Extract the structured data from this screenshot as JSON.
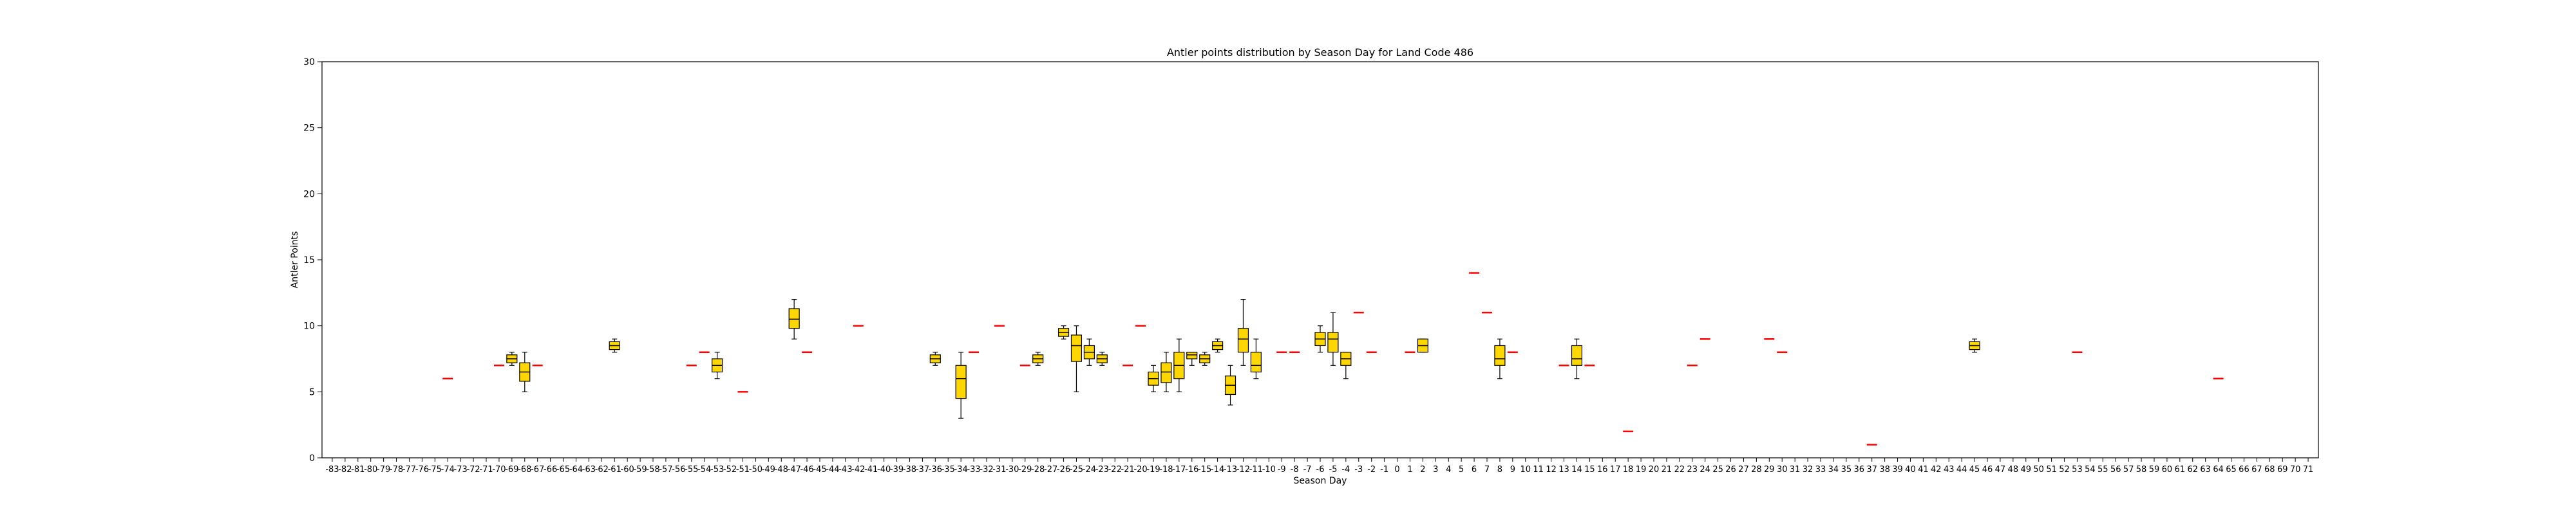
{
  "chart_data": {
    "type": "box",
    "title": "Antler points distribution by Season Day for Land Code 486",
    "xlabel": "Season Day",
    "ylabel": "Antler Points",
    "ylim": [
      0,
      30
    ],
    "yticks": [
      0,
      5,
      10,
      15,
      20,
      25,
      30
    ],
    "x_categories_range": [
      -83,
      71
    ],
    "grid": false,
    "legend": "none",
    "colors": {
      "box_fill": "#ffd700",
      "median": "#ff0000",
      "edge": "#000000",
      "whisker": "#000000"
    },
    "boxes": [
      {
        "x": -74,
        "q1": 6,
        "median": 6,
        "q3": 6,
        "low": 6,
        "high": 6
      },
      {
        "x": -70,
        "q1": 7,
        "median": 7,
        "q3": 7,
        "low": 7,
        "high": 7
      },
      {
        "x": -69,
        "q1": 7.2,
        "median": 7.5,
        "q3": 7.8,
        "low": 7,
        "high": 8
      },
      {
        "x": -68,
        "q1": 5.8,
        "median": 6.5,
        "q3": 7.2,
        "low": 5,
        "high": 8
      },
      {
        "x": -67,
        "q1": 7,
        "median": 7,
        "q3": 7,
        "low": 7,
        "high": 7
      },
      {
        "x": -61,
        "q1": 8.2,
        "median": 8.5,
        "q3": 8.8,
        "low": 8,
        "high": 9
      },
      {
        "x": -55,
        "q1": 7,
        "median": 7,
        "q3": 7,
        "low": 7,
        "high": 7
      },
      {
        "x": -54,
        "q1": 8,
        "median": 8,
        "q3": 8,
        "low": 8,
        "high": 8
      },
      {
        "x": -53,
        "q1": 6.5,
        "median": 7,
        "q3": 7.5,
        "low": 6,
        "high": 8
      },
      {
        "x": -51,
        "q1": 5,
        "median": 5,
        "q3": 5,
        "low": 5,
        "high": 5
      },
      {
        "x": -47,
        "q1": 9.8,
        "median": 10.5,
        "q3": 11.3,
        "low": 9,
        "high": 12
      },
      {
        "x": -46,
        "q1": 8,
        "median": 8,
        "q3": 8,
        "low": 8,
        "high": 8
      },
      {
        "x": -42,
        "q1": 10,
        "median": 10,
        "q3": 10,
        "low": 10,
        "high": 10
      },
      {
        "x": -36,
        "q1": 7.2,
        "median": 7.5,
        "q3": 7.8,
        "low": 7,
        "high": 8
      },
      {
        "x": -34,
        "q1": 4.5,
        "median": 6,
        "q3": 7,
        "low": 3,
        "high": 8
      },
      {
        "x": -33,
        "q1": 8,
        "median": 8,
        "q3": 8,
        "low": 8,
        "high": 8
      },
      {
        "x": -31,
        "q1": 10,
        "median": 10,
        "q3": 10,
        "low": 10,
        "high": 10
      },
      {
        "x": -29,
        "q1": 7,
        "median": 7,
        "q3": 7,
        "low": 7,
        "high": 7
      },
      {
        "x": -28,
        "q1": 7.2,
        "median": 7.5,
        "q3": 7.8,
        "low": 7,
        "high": 8
      },
      {
        "x": -26,
        "q1": 9.2,
        "median": 9.5,
        "q3": 9.8,
        "low": 9,
        "high": 10
      },
      {
        "x": -25,
        "q1": 7.3,
        "median": 8.5,
        "q3": 9.3,
        "low": 5,
        "high": 10
      },
      {
        "x": -24,
        "q1": 7.5,
        "median": 8,
        "q3": 8.5,
        "low": 7,
        "high": 9
      },
      {
        "x": -23,
        "q1": 7.2,
        "median": 7.5,
        "q3": 7.8,
        "low": 7,
        "high": 8
      },
      {
        "x": -21,
        "q1": 7,
        "median": 7,
        "q3": 7,
        "low": 7,
        "high": 7
      },
      {
        "x": -20,
        "q1": 10,
        "median": 10,
        "q3": 10,
        "low": 10,
        "high": 10
      },
      {
        "x": -19,
        "q1": 5.5,
        "median": 6,
        "q3": 6.5,
        "low": 5,
        "high": 7
      },
      {
        "x": -18,
        "q1": 5.7,
        "median": 6.5,
        "q3": 7.2,
        "low": 5,
        "high": 8
      },
      {
        "x": -17,
        "q1": 6,
        "median": 7,
        "q3": 8,
        "low": 5,
        "high": 9
      },
      {
        "x": -16,
        "q1": 7.5,
        "median": 7.8,
        "q3": 8,
        "low": 7,
        "high": 8
      },
      {
        "x": -15,
        "q1": 7.2,
        "median": 7.5,
        "q3": 7.8,
        "low": 7,
        "high": 8
      },
      {
        "x": -14,
        "q1": 8.2,
        "median": 8.5,
        "q3": 8.8,
        "low": 8,
        "high": 9
      },
      {
        "x": -13,
        "q1": 4.8,
        "median": 5.5,
        "q3": 6.2,
        "low": 4,
        "high": 7
      },
      {
        "x": -12,
        "q1": 8,
        "median": 9,
        "q3": 9.8,
        "low": 7,
        "high": 12
      },
      {
        "x": -11,
        "q1": 6.5,
        "median": 7,
        "q3": 8,
        "low": 6,
        "high": 9
      },
      {
        "x": -9,
        "q1": 8,
        "median": 8,
        "q3": 8,
        "low": 8,
        "high": 8
      },
      {
        "x": -8,
        "q1": 8,
        "median": 8,
        "q3": 8,
        "low": 8,
        "high": 8
      },
      {
        "x": -6,
        "q1": 8.5,
        "median": 9,
        "q3": 9.5,
        "low": 8,
        "high": 10
      },
      {
        "x": -5,
        "q1": 8,
        "median": 9,
        "q3": 9.5,
        "low": 7,
        "high": 11
      },
      {
        "x": -4,
        "q1": 7,
        "median": 7.5,
        "q3": 8,
        "low": 6,
        "high": 8
      },
      {
        "x": -3,
        "q1": 11,
        "median": 11,
        "q3": 11,
        "low": 11,
        "high": 11
      },
      {
        "x": -2,
        "q1": 8,
        "median": 8,
        "q3": 8,
        "low": 8,
        "high": 8
      },
      {
        "x": 1,
        "q1": 8,
        "median": 8,
        "q3": 8,
        "low": 8,
        "high": 8
      },
      {
        "x": 2,
        "q1": 8,
        "median": 8.5,
        "q3": 9,
        "low": 8,
        "high": 9
      },
      {
        "x": 6,
        "q1": 14,
        "median": 14,
        "q3": 14,
        "low": 14,
        "high": 14
      },
      {
        "x": 7,
        "q1": 11,
        "median": 11,
        "q3": 11,
        "low": 11,
        "high": 11
      },
      {
        "x": 8,
        "q1": 7,
        "median": 7.5,
        "q3": 8.5,
        "low": 6,
        "high": 9
      },
      {
        "x": 9,
        "q1": 8,
        "median": 8,
        "q3": 8,
        "low": 8,
        "high": 8
      },
      {
        "x": 13,
        "q1": 7,
        "median": 7,
        "q3": 7,
        "low": 7,
        "high": 7
      },
      {
        "x": 14,
        "q1": 7,
        "median": 7.5,
        "q3": 8.5,
        "low": 6,
        "high": 9
      },
      {
        "x": 15,
        "q1": 7,
        "median": 7,
        "q3": 7,
        "low": 7,
        "high": 7
      },
      {
        "x": 18,
        "q1": 2,
        "median": 2,
        "q3": 2,
        "low": 2,
        "high": 2
      },
      {
        "x": 23,
        "q1": 7,
        "median": 7,
        "q3": 7,
        "low": 7,
        "high": 7
      },
      {
        "x": 24,
        "q1": 9,
        "median": 9,
        "q3": 9,
        "low": 9,
        "high": 9
      },
      {
        "x": 29,
        "q1": 9,
        "median": 9,
        "q3": 9,
        "low": 9,
        "high": 9
      },
      {
        "x": 30,
        "q1": 8,
        "median": 8,
        "q3": 8,
        "low": 8,
        "high": 8
      },
      {
        "x": 37,
        "q1": 1,
        "median": 1,
        "q3": 1,
        "low": 1,
        "high": 1
      },
      {
        "x": 45,
        "q1": 8.2,
        "median": 8.5,
        "q3": 8.8,
        "low": 8,
        "high": 9
      },
      {
        "x": 53,
        "q1": 8,
        "median": 8,
        "q3": 8,
        "low": 8,
        "high": 8
      },
      {
        "x": 64,
        "q1": 6,
        "median": 6,
        "q3": 6,
        "low": 6,
        "high": 6
      }
    ]
  }
}
